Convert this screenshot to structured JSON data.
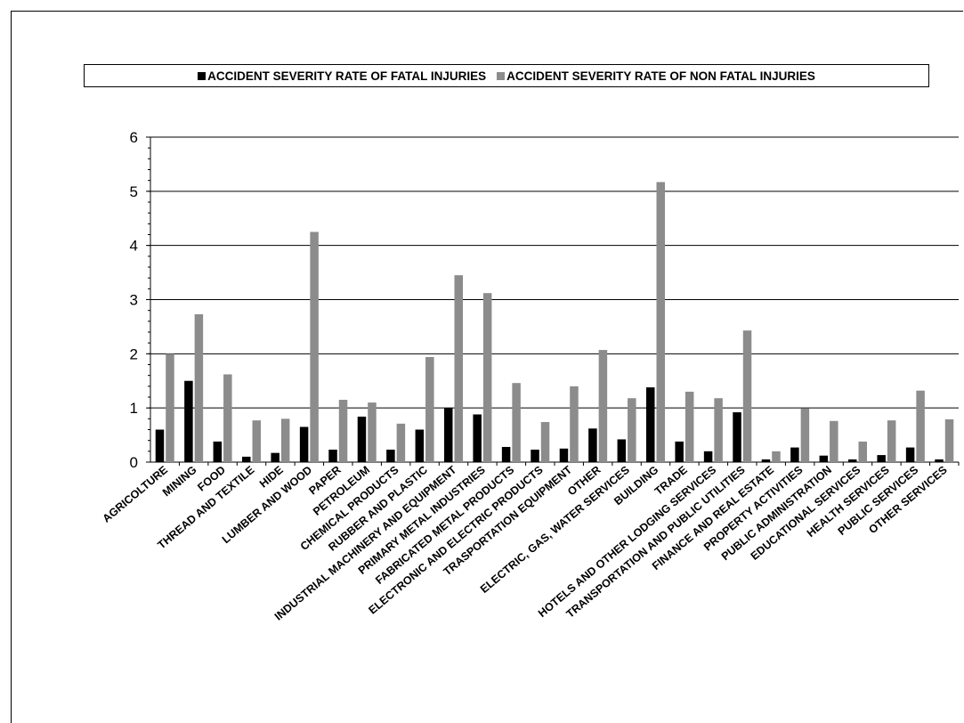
{
  "chart_data": {
    "type": "bar",
    "title": "",
    "xlabel": "",
    "ylabel": "",
    "ylim": [
      0,
      6
    ],
    "yticks": [
      0,
      1,
      2,
      3,
      4,
      5,
      6
    ],
    "grid": true,
    "legend_position": "top",
    "categories": [
      "AGRICOLTURE",
      "MINING",
      "FOOD",
      "THREAD AND TEXTILE",
      "HIDE",
      "LUMBER AND WOOD",
      "PAPER",
      "PETROLEUM",
      "CHEMICAL PRODUCTS",
      "RUBBER AND PLASTIC",
      "INDUSTRIAL MACHINERY AND EQUIPMENT",
      "PRIMARY METAL INDUSTRIES",
      "FABRICATED METAL PRODUCTS",
      "ELECTRONIC AND ELECTRIC PRODUCTS",
      "TRASPORTATION EQUIPMENT",
      "OTHER",
      "ELECTRIC, GAS, WATER SERVICES",
      "BUILDING",
      "TRADE",
      "HOTELS AND OTHER LODGING SERVICES",
      "TRANSPORTATION AND PUBLIC UTILITIES",
      "FINANCE AND REAL ESTATE",
      "PROPERTY ACTIVITIES",
      "PUBLIC ADMINISTRATION",
      "EDUCATIONAL SERVICES",
      "HEALTH SERVICES",
      "PUBLIC SERVICES",
      "OTHER SERVICES"
    ],
    "series": [
      {
        "name": "ACCIDENT SEVERITY RATE OF FATAL INJURIES",
        "color": "#000000",
        "values": [
          0.6,
          1.5,
          0.38,
          0.1,
          0.17,
          0.65,
          0.23,
          0.84,
          0.23,
          0.6,
          1.0,
          0.88,
          0.28,
          0.23,
          0.25,
          0.62,
          0.42,
          1.38,
          0.38,
          0.2,
          0.92,
          0.05,
          0.27,
          0.12,
          0.05,
          0.13,
          0.27,
          0.05
        ]
      },
      {
        "name": "ACCIDENT SEVERITY RATE OF NON FATAL INJURIES",
        "color": "#8c8c8c",
        "values": [
          2.0,
          2.73,
          1.62,
          0.77,
          0.8,
          4.25,
          1.15,
          1.1,
          0.71,
          1.94,
          3.45,
          3.12,
          1.46,
          0.74,
          1.4,
          2.07,
          1.18,
          5.17,
          1.3,
          1.18,
          2.43,
          0.2,
          0.99,
          0.76,
          0.38,
          0.77,
          1.32,
          0.79
        ]
      }
    ]
  }
}
